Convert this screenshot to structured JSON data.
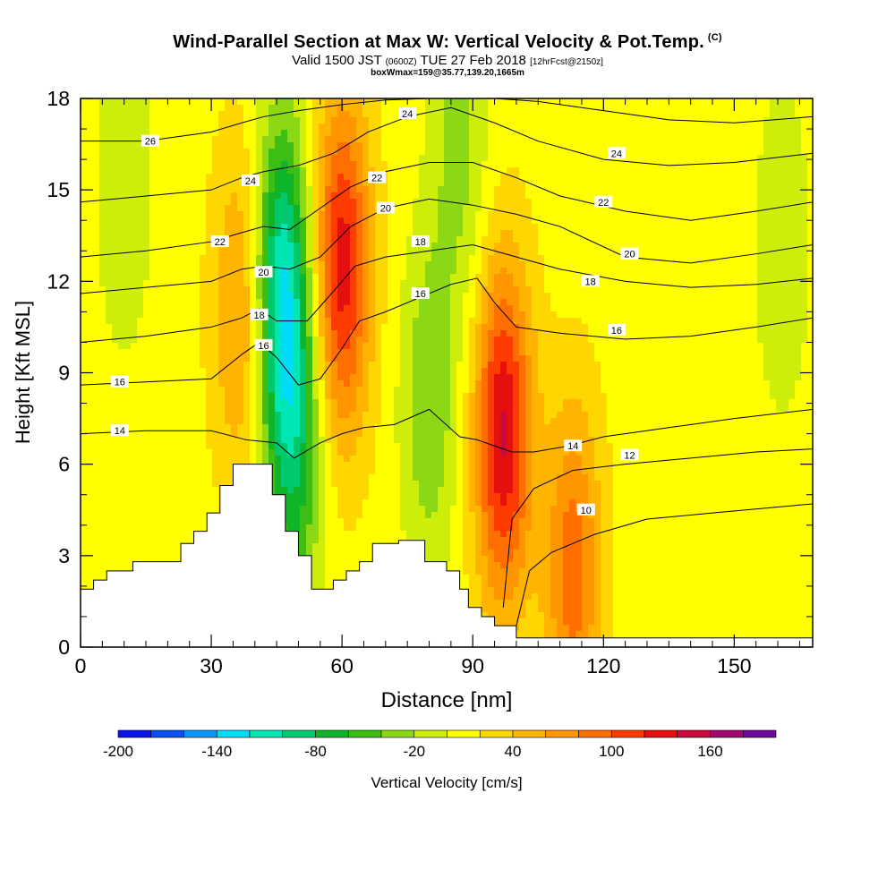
{
  "header": {
    "title": "Wind-Parallel Section at Max W: Vertical Velocity & Pot.Temp.",
    "title_tag": "(C)",
    "valid_prefix": "Valid 1500 JST",
    "valid_zulu": "(0600Z)",
    "valid_date": "TUE 27 Feb 2018",
    "forecast_tag": "[12hrFcst@2150z]",
    "box_info": "boxWmax=159@35.77,139.20,1665m"
  },
  "chart_data": {
    "type": "heatmap",
    "xlabel": "Distance [nm]",
    "ylabel": "Height [Kft MSL]",
    "xlim": [
      0,
      168
    ],
    "ylim": [
      0,
      18
    ],
    "x_ticks": [
      0,
      30,
      60,
      90,
      120,
      150
    ],
    "y_ticks": [
      0,
      3,
      6,
      9,
      12,
      15,
      18
    ],
    "colorbar": {
      "label": "Vertical Velocity [cm/s]",
      "tick_labels": [
        "-200",
        "-140",
        "-80",
        "-20",
        "40",
        "100",
        "160"
      ],
      "tick_values": [
        -200,
        -140,
        -80,
        -20,
        40,
        100,
        160
      ],
      "bins": [
        {
          "min": -200,
          "max": -180,
          "color": "#0a14e6"
        },
        {
          "min": -180,
          "max": -160,
          "color": "#0a50f0"
        },
        {
          "min": -160,
          "max": -140,
          "color": "#0a96f5"
        },
        {
          "min": -140,
          "max": -120,
          "color": "#00dcf5"
        },
        {
          "min": -120,
          "max": -100,
          "color": "#00e6b4"
        },
        {
          "min": -100,
          "max": -80,
          "color": "#00c86e"
        },
        {
          "min": -80,
          "max": -60,
          "color": "#10b428"
        },
        {
          "min": -60,
          "max": -40,
          "color": "#3cbe14"
        },
        {
          "min": -40,
          "max": -20,
          "color": "#8cd814"
        },
        {
          "min": -20,
          "max": 0,
          "color": "#cdee0a"
        },
        {
          "min": 0,
          "max": 20,
          "color": "#ffff00"
        },
        {
          "min": 20,
          "max": 40,
          "color": "#ffd700"
        },
        {
          "min": 40,
          "max": 60,
          "color": "#ffb400"
        },
        {
          "min": 60,
          "max": 80,
          "color": "#ff9600"
        },
        {
          "min": 80,
          "max": 100,
          "color": "#ff6e00"
        },
        {
          "min": 100,
          "max": 120,
          "color": "#ff3c00"
        },
        {
          "min": 120,
          "max": 140,
          "color": "#e60f0f"
        },
        {
          "min": 140,
          "max": 160,
          "color": "#c80a3c"
        },
        {
          "min": 160,
          "max": 180,
          "color": "#a00a6e"
        },
        {
          "min": 180,
          "max": 200,
          "color": "#6e0a96"
        }
      ]
    },
    "terrain": [
      [
        0,
        1.9
      ],
      [
        3,
        1.9
      ],
      [
        3,
        2.2
      ],
      [
        6,
        2.2
      ],
      [
        6,
        2.5
      ],
      [
        12,
        2.5
      ],
      [
        12,
        2.8
      ],
      [
        23,
        2.8
      ],
      [
        23,
        3.4
      ],
      [
        26,
        3.4
      ],
      [
        26,
        3.8
      ],
      [
        29,
        3.8
      ],
      [
        29,
        4.4
      ],
      [
        32,
        4.4
      ],
      [
        32,
        5.3
      ],
      [
        35,
        5.3
      ],
      [
        35,
        6.0
      ],
      [
        44,
        6.0
      ],
      [
        44,
        5.0
      ],
      [
        47,
        5.0
      ],
      [
        47,
        3.8
      ],
      [
        50,
        3.8
      ],
      [
        50,
        3.0
      ],
      [
        53,
        3.0
      ],
      [
        53,
        1.9
      ],
      [
        58,
        1.9
      ],
      [
        58,
        2.2
      ],
      [
        61,
        2.2
      ],
      [
        61,
        2.5
      ],
      [
        64,
        2.5
      ],
      [
        64,
        2.8
      ],
      [
        67,
        2.8
      ],
      [
        67,
        3.4
      ],
      [
        73,
        3.4
      ],
      [
        73,
        3.5
      ],
      [
        79,
        3.5
      ],
      [
        79,
        2.8
      ],
      [
        84,
        2.8
      ],
      [
        84,
        2.5
      ],
      [
        87,
        2.5
      ],
      [
        87,
        1.9
      ],
      [
        89,
        1.9
      ],
      [
        89,
        1.3
      ],
      [
        92,
        1.3
      ],
      [
        92,
        1.0
      ],
      [
        95,
        1.0
      ],
      [
        95,
        0.7
      ],
      [
        100,
        0.7
      ],
      [
        100,
        0.3
      ],
      [
        168,
        0.3
      ]
    ],
    "updraft_maxima": [
      {
        "x": 60,
        "y": 12.5,
        "value": 120
      },
      {
        "x": 97,
        "y": 7.0,
        "value": 130
      },
      {
        "x": 37,
        "y": 11.0,
        "value": 60
      },
      {
        "x": 113,
        "y": 2.5,
        "value": 80
      }
    ],
    "downdraft_minima": [
      {
        "x": 46,
        "y": 12.0,
        "value": -120
      },
      {
        "x": 49,
        "y": 6.5,
        "value": -80
      },
      {
        "x": 80,
        "y": 8.0,
        "value": -50
      },
      {
        "x": 87,
        "y": 16.5,
        "value": -40
      },
      {
        "x": 10,
        "y": 15.0,
        "value": -30
      },
      {
        "x": 161,
        "y": 13.0,
        "value": -30
      }
    ],
    "isentropes": [
      {
        "label": "10",
        "points": [
          [
            100,
            0.7
          ],
          [
            103,
            2.5
          ],
          [
            108,
            3.1
          ],
          [
            118,
            3.7
          ],
          [
            130,
            4.2
          ],
          [
            145,
            4.4
          ],
          [
            168,
            4.7
          ]
        ]
      },
      {
        "label": "12",
        "points": [
          [
            97,
            1.3
          ],
          [
            99,
            4.2
          ],
          [
            104,
            5.2
          ],
          [
            113,
            5.8
          ],
          [
            125,
            6.0
          ],
          [
            140,
            6.2
          ],
          [
            155,
            6.4
          ],
          [
            168,
            6.5
          ]
        ]
      },
      {
        "label": "14",
        "points": [
          [
            0,
            7.0
          ],
          [
            15,
            7.1
          ],
          [
            30,
            7.1
          ],
          [
            38,
            6.8
          ],
          [
            45,
            6.7
          ],
          [
            49,
            6.2
          ],
          [
            55,
            6.7
          ],
          [
            60,
            7.0
          ],
          [
            65,
            7.2
          ],
          [
            72,
            7.3
          ],
          [
            80,
            7.8
          ],
          [
            87,
            6.9
          ],
          [
            91,
            6.8
          ],
          [
            95,
            6.6
          ],
          [
            99,
            6.4
          ],
          [
            104,
            6.4
          ],
          [
            112,
            6.6
          ],
          [
            120,
            6.9
          ],
          [
            135,
            7.2
          ],
          [
            150,
            7.5
          ],
          [
            168,
            7.8
          ]
        ]
      },
      {
        "label": "16",
        "points": [
          [
            0,
            8.6
          ],
          [
            15,
            8.7
          ],
          [
            30,
            8.8
          ],
          [
            37,
            9.6
          ],
          [
            41,
            10.0
          ],
          [
            45,
            9.5
          ],
          [
            50,
            8.6
          ],
          [
            55,
            8.8
          ],
          [
            60,
            9.8
          ],
          [
            64,
            10.7
          ],
          [
            70,
            11.0
          ],
          [
            80,
            11.6
          ],
          [
            85,
            11.9
          ],
          [
            91,
            12.1
          ],
          [
            95,
            11.3
          ],
          [
            100,
            10.5
          ],
          [
            110,
            10.3
          ],
          [
            125,
            10.1
          ],
          [
            140,
            10.2
          ],
          [
            155,
            10.5
          ],
          [
            168,
            10.8
          ]
        ]
      },
      {
        "label": "18",
        "points": [
          [
            0,
            10.0
          ],
          [
            15,
            10.2
          ],
          [
            30,
            10.5
          ],
          [
            37,
            10.8
          ],
          [
            41,
            11.1
          ],
          [
            45,
            10.7
          ],
          [
            52,
            10.7
          ],
          [
            57,
            11.5
          ],
          [
            63,
            12.5
          ],
          [
            70,
            12.8
          ],
          [
            80,
            13.0
          ],
          [
            90,
            13.2
          ],
          [
            100,
            12.8
          ],
          [
            110,
            12.4
          ],
          [
            125,
            12.0
          ],
          [
            140,
            11.8
          ],
          [
            155,
            11.9
          ],
          [
            168,
            12.1
          ]
        ]
      },
      {
        "label": "20",
        "points": [
          [
            0,
            11.6
          ],
          [
            15,
            11.8
          ],
          [
            30,
            12.0
          ],
          [
            37,
            12.4
          ],
          [
            42,
            12.5
          ],
          [
            48,
            12.4
          ],
          [
            55,
            12.8
          ],
          [
            62,
            13.8
          ],
          [
            70,
            14.4
          ],
          [
            80,
            14.7
          ],
          [
            90,
            14.5
          ],
          [
            100,
            14.2
          ],
          [
            110,
            13.8
          ],
          [
            125,
            12.8
          ],
          [
            140,
            12.6
          ],
          [
            155,
            12.9
          ],
          [
            168,
            13.2
          ]
        ]
      },
      {
        "label": "22",
        "points": [
          [
            0,
            12.8
          ],
          [
            15,
            13.0
          ],
          [
            30,
            13.3
          ],
          [
            37,
            13.6
          ],
          [
            42,
            13.8
          ],
          [
            48,
            13.7
          ],
          [
            55,
            14.4
          ],
          [
            62,
            15.1
          ],
          [
            70,
            15.6
          ],
          [
            80,
            15.9
          ],
          [
            90,
            15.9
          ],
          [
            100,
            15.4
          ],
          [
            110,
            14.8
          ],
          [
            125,
            14.3
          ],
          [
            140,
            14.0
          ],
          [
            155,
            14.3
          ],
          [
            168,
            14.6
          ]
        ]
      },
      {
        "label": "24",
        "points": [
          [
            0,
            14.6
          ],
          [
            15,
            14.8
          ],
          [
            30,
            15.0
          ],
          [
            37,
            15.4
          ],
          [
            42,
            15.6
          ],
          [
            50,
            15.8
          ],
          [
            58,
            16.2
          ],
          [
            66,
            16.9
          ],
          [
            75,
            17.4
          ],
          [
            85,
            17.7
          ],
          [
            95,
            17.2
          ],
          [
            105,
            16.6
          ],
          [
            120,
            16.0
          ],
          [
            135,
            15.8
          ],
          [
            150,
            15.9
          ],
          [
            168,
            16.2
          ]
        ]
      },
      {
        "label": "26",
        "points": [
          [
            0,
            16.6
          ],
          [
            15,
            16.6
          ],
          [
            30,
            16.9
          ],
          [
            37,
            17.2
          ],
          [
            42,
            17.4
          ],
          [
            50,
            17.6
          ],
          [
            60,
            17.8
          ],
          [
            70,
            17.95
          ],
          [
            80,
            18.0
          ],
          [
            95,
            18.0
          ],
          [
            105,
            17.9
          ],
          [
            120,
            17.6
          ],
          [
            135,
            17.3
          ],
          [
            150,
            17.2
          ],
          [
            168,
            17.4
          ]
        ]
      }
    ],
    "contour_labels": [
      {
        "text": "26",
        "x": 16,
        "y": 16.6
      },
      {
        "text": "24",
        "x": 39,
        "y": 15.3
      },
      {
        "text": "22",
        "x": 32,
        "y": 13.3
      },
      {
        "text": "20",
        "x": 42,
        "y": 12.3
      },
      {
        "text": "18",
        "x": 41,
        "y": 10.9
      },
      {
        "text": "16",
        "x": 42,
        "y": 9.9
      },
      {
        "text": "16",
        "x": 9,
        "y": 8.7
      },
      {
        "text": "14",
        "x": 9,
        "y": 7.1
      },
      {
        "text": "24",
        "x": 75,
        "y": 17.5
      },
      {
        "text": "22",
        "x": 68,
        "y": 15.4
      },
      {
        "text": "20",
        "x": 70,
        "y": 14.4
      },
      {
        "text": "18",
        "x": 78,
        "y": 13.3
      },
      {
        "text": "16",
        "x": 78,
        "y": 11.6
      },
      {
        "text": "24",
        "x": 123,
        "y": 16.2
      },
      {
        "text": "22",
        "x": 120,
        "y": 14.6
      },
      {
        "text": "20",
        "x": 126,
        "y": 12.9
      },
      {
        "text": "18",
        "x": 117,
        "y": 12.0
      },
      {
        "text": "16",
        "x": 123,
        "y": 10.4
      },
      {
        "text": "14",
        "x": 113,
        "y": 6.6
      },
      {
        "text": "12",
        "x": 126,
        "y": 6.3
      },
      {
        "text": "10",
        "x": 116,
        "y": 4.5
      }
    ]
  }
}
